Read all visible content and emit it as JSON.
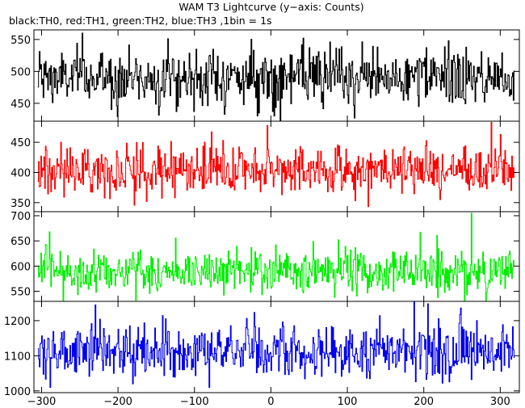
{
  "title": "WAM T3 Lightcurve (y−axis: Counts)",
  "subtitle": "black:TH0, red:TH1, green:TH2, blue:TH3 ,1bin = 1s",
  "chart_data": {
    "type": "line",
    "title": "WAM T3 Lightcurve (y−axis: Counts)",
    "subtitle": "black:TH0, red:TH1, green:TH2, blue:TH3 ,1bin = 1s",
    "xlim": [
      -310,
      325
    ],
    "xticks": [
      -300,
      -200,
      -100,
      0,
      100,
      200,
      300
    ],
    "x_start": -305,
    "x_end": 318,
    "bin_size": 1,
    "grid": false,
    "panels": [
      {
        "name": "TH0",
        "color": "#000000",
        "ylim": [
          422,
          565
        ],
        "yticks": [
          450,
          500,
          550
        ],
        "mean": 490,
        "noise": 22,
        "peaks": [
          [
            -247,
            560
          ],
          [
            -135,
            551
          ],
          [
            42,
            552
          ],
          [
            232,
            548
          ]
        ]
      },
      {
        "name": "TH1",
        "color": "#ff0000",
        "ylim": [
          335,
          485
        ],
        "yticks": [
          350,
          400,
          450
        ],
        "mean": 404,
        "noise": 20,
        "peaks": [
          [
            -5,
            478
          ],
          [
            288,
            483
          ],
          [
            300,
            463
          ]
        ]
      },
      {
        "name": "TH2",
        "color": "#00ee00",
        "ylim": [
          530,
          708
        ],
        "yticks": [
          550,
          600,
          650,
          700
        ],
        "mean": 590,
        "noise": 22,
        "peaks": [
          [
            -290,
            668
          ],
          [
            262,
            705
          ],
          [
            195,
            667
          ]
        ]
      },
      {
        "name": "TH3",
        "color": "#0000ee",
        "ylim": [
          995,
          1255
        ],
        "yticks": [
          1000,
          1100,
          1200
        ],
        "mean": 1112,
        "noise": 38,
        "peaks": [
          [
            -230,
            1245
          ],
          [
            187,
            1255
          ],
          [
            205,
            1248
          ],
          [
            248,
            1236
          ]
        ]
      }
    ]
  }
}
